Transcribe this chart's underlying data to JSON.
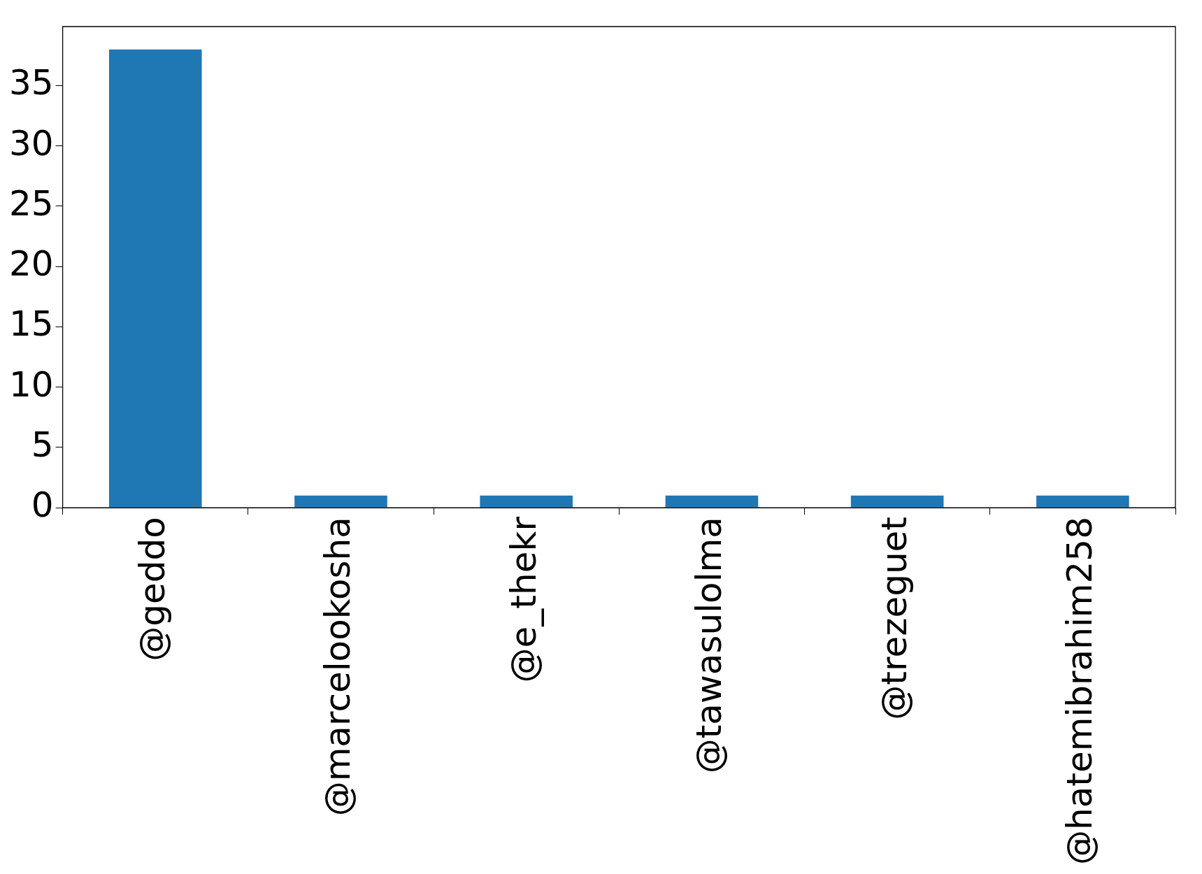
{
  "chart_data": {
    "type": "bar",
    "categories": [
      "@geddo",
      "@marcelookosha",
      "@e_thekr",
      "@tawasulolma",
      "@trezeguet",
      "@hatemibrahim258"
    ],
    "values": [
      38,
      1,
      1,
      1,
      1,
      1
    ],
    "color": "#1f77b4",
    "ylim": [
      0,
      39.9
    ],
    "yticks": [
      0,
      5,
      10,
      15,
      20,
      25,
      30,
      35
    ],
    "legend": false
  }
}
